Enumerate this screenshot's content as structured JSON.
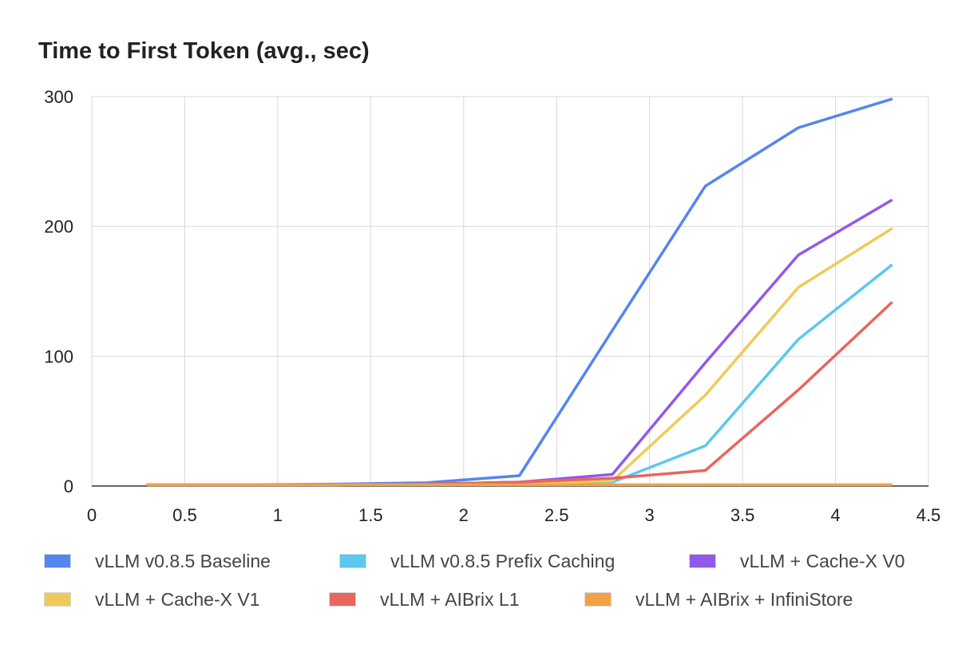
{
  "chart_data": {
    "type": "line",
    "title": "Time to First Token (avg., sec)",
    "xlabel": "",
    "ylabel": "",
    "xlim": [
      0,
      4.5
    ],
    "ylim": [
      0,
      300
    ],
    "x_ticks": [
      "0",
      "0.5",
      "1",
      "1.5",
      "2",
      "2.5",
      "3",
      "3.5",
      "4",
      "4.5"
    ],
    "y_ticks": [
      "0",
      "100",
      "200",
      "300"
    ],
    "grid": true,
    "legend_position": "bottom",
    "x": [
      0.3,
      0.8,
      1.3,
      1.8,
      2.3,
      2.8,
      3.3,
      3.8,
      4.3
    ],
    "series": [
      {
        "name": "vLLM v0.8.5 Baseline",
        "color": "#5585ee",
        "values": [
          1,
          1,
          1.5,
          2.5,
          8,
          120,
          231,
          276,
          298
        ]
      },
      {
        "name": "vLLM v0.8.5 Prefix Caching",
        "color": "#5bc8f0",
        "values": [
          1,
          1,
          1,
          1.5,
          2,
          3,
          31,
          113,
          170
        ]
      },
      {
        "name": "vLLM + Cache-X V0",
        "color": "#9159ea",
        "values": [
          1,
          1,
          1,
          1.5,
          3,
          9,
          95,
          178,
          220
        ]
      },
      {
        "name": "vLLM + Cache-X V1",
        "color": "#f0ca58",
        "values": [
          1,
          1,
          1,
          1.5,
          2,
          4,
          70,
          153,
          198
        ]
      },
      {
        "name": "vLLM + AIBrix L1",
        "color": "#e9655f",
        "values": [
          1,
          1,
          1,
          1.5,
          3,
          6,
          12,
          74,
          141
        ]
      },
      {
        "name": "vLLM + AIBrix + InfiniStore",
        "color": "#f2a244",
        "values": [
          1,
          1,
          1,
          1,
          1,
          1,
          1,
          1,
          1
        ]
      }
    ]
  }
}
